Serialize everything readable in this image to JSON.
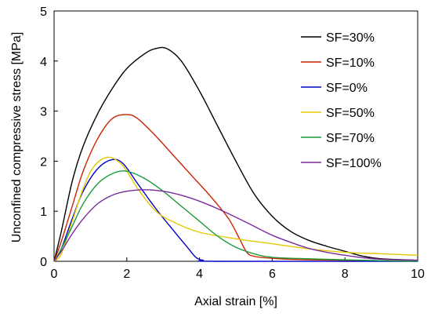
{
  "chart_data": {
    "type": "line",
    "title": "",
    "xlabel": "Axial strain [%]",
    "ylabel": "Unconfined compressive stress [MPa]",
    "xlim": [
      0,
      10
    ],
    "ylim": [
      0,
      5
    ],
    "x_ticks": [
      0,
      2,
      4,
      6,
      8,
      10
    ],
    "y_ticks": [
      0,
      1,
      2,
      3,
      4,
      5
    ],
    "grid": false,
    "legend_position": "top-right",
    "series": [
      {
        "name": "SF=30%",
        "color": "#000000",
        "points": [
          [
            0,
            0
          ],
          [
            0.2,
            0.6
          ],
          [
            0.5,
            1.6
          ],
          [
            0.8,
            2.3
          ],
          [
            1.2,
            2.95
          ],
          [
            1.6,
            3.45
          ],
          [
            2.0,
            3.85
          ],
          [
            2.5,
            4.15
          ],
          [
            2.8,
            4.25
          ],
          [
            3.1,
            4.25
          ],
          [
            3.5,
            4.0
          ],
          [
            4.0,
            3.4
          ],
          [
            4.5,
            2.7
          ],
          [
            5.0,
            2.0
          ],
          [
            5.5,
            1.35
          ],
          [
            6.0,
            0.9
          ],
          [
            6.5,
            0.6
          ],
          [
            7.0,
            0.42
          ],
          [
            7.5,
            0.3
          ],
          [
            8.0,
            0.2
          ],
          [
            8.5,
            0.1
          ],
          [
            9.0,
            0.05
          ],
          [
            10.0,
            0.02
          ]
        ]
      },
      {
        "name": "SF=10%",
        "color": "#cc2200",
        "points": [
          [
            0,
            0
          ],
          [
            0.2,
            0.4
          ],
          [
            0.5,
            1.1
          ],
          [
            0.8,
            1.8
          ],
          [
            1.2,
            2.45
          ],
          [
            1.6,
            2.85
          ],
          [
            2.0,
            2.93
          ],
          [
            2.3,
            2.85
          ],
          [
            2.8,
            2.5
          ],
          [
            3.3,
            2.1
          ],
          [
            3.8,
            1.7
          ],
          [
            4.3,
            1.3
          ],
          [
            4.8,
            0.85
          ],
          [
            5.1,
            0.45
          ],
          [
            5.3,
            0.18
          ],
          [
            5.5,
            0.1
          ],
          [
            6.0,
            0.06
          ],
          [
            7.0,
            0.03
          ],
          [
            10.0,
            0.0
          ]
        ]
      },
      {
        "name": "SF=0%",
        "color": "#0000cc",
        "points": [
          [
            0,
            0
          ],
          [
            0.2,
            0.25
          ],
          [
            0.5,
            0.85
          ],
          [
            0.8,
            1.4
          ],
          [
            1.2,
            1.85
          ],
          [
            1.6,
            2.03
          ],
          [
            1.9,
            1.95
          ],
          [
            2.3,
            1.55
          ],
          [
            2.8,
            1.05
          ],
          [
            3.3,
            0.6
          ],
          [
            3.7,
            0.25
          ],
          [
            3.9,
            0.08
          ],
          [
            4.1,
            0.02
          ],
          [
            4.5,
            0.0
          ],
          [
            10.0,
            0.0
          ]
        ]
      },
      {
        "name": "SF=50%",
        "color": "#e6c800",
        "points": [
          [
            0,
            0
          ],
          [
            0.2,
            0.15
          ],
          [
            0.5,
            0.8
          ],
          [
            0.8,
            1.45
          ],
          [
            1.1,
            1.9
          ],
          [
            1.5,
            2.08
          ],
          [
            1.9,
            1.9
          ],
          [
            2.3,
            1.45
          ],
          [
            2.8,
            1.0
          ],
          [
            3.3,
            0.78
          ],
          [
            4.0,
            0.58
          ],
          [
            5.0,
            0.45
          ],
          [
            6.0,
            0.35
          ],
          [
            7.0,
            0.25
          ],
          [
            8.0,
            0.18
          ],
          [
            9.0,
            0.15
          ],
          [
            10.0,
            0.12
          ]
        ]
      },
      {
        "name": "SF=70%",
        "color": "#1a9c3a",
        "points": [
          [
            0,
            0
          ],
          [
            0.2,
            0.25
          ],
          [
            0.5,
            0.7
          ],
          [
            0.8,
            1.15
          ],
          [
            1.2,
            1.55
          ],
          [
            1.6,
            1.75
          ],
          [
            2.0,
            1.8
          ],
          [
            2.5,
            1.65
          ],
          [
            3.0,
            1.4
          ],
          [
            3.5,
            1.1
          ],
          [
            4.0,
            0.8
          ],
          [
            4.5,
            0.5
          ],
          [
            5.0,
            0.28
          ],
          [
            5.5,
            0.15
          ],
          [
            6.0,
            0.08
          ],
          [
            7.0,
            0.05
          ],
          [
            8.5,
            0.02
          ],
          [
            10.0,
            0.0
          ]
        ]
      },
      {
        "name": "SF=100%",
        "color": "#7a2c9c",
        "points": [
          [
            0,
            0
          ],
          [
            0.2,
            0.2
          ],
          [
            0.5,
            0.55
          ],
          [
            0.8,
            0.85
          ],
          [
            1.2,
            1.15
          ],
          [
            1.6,
            1.32
          ],
          [
            2.0,
            1.4
          ],
          [
            2.5,
            1.43
          ],
          [
            3.0,
            1.4
          ],
          [
            3.5,
            1.32
          ],
          [
            4.0,
            1.2
          ],
          [
            4.5,
            1.05
          ],
          [
            5.0,
            0.88
          ],
          [
            5.5,
            0.7
          ],
          [
            6.0,
            0.52
          ],
          [
            6.5,
            0.38
          ],
          [
            7.0,
            0.26
          ],
          [
            7.5,
            0.18
          ],
          [
            8.0,
            0.12
          ],
          [
            8.5,
            0.07
          ],
          [
            9.0,
            0.04
          ],
          [
            10.0,
            0.02
          ]
        ]
      }
    ]
  }
}
